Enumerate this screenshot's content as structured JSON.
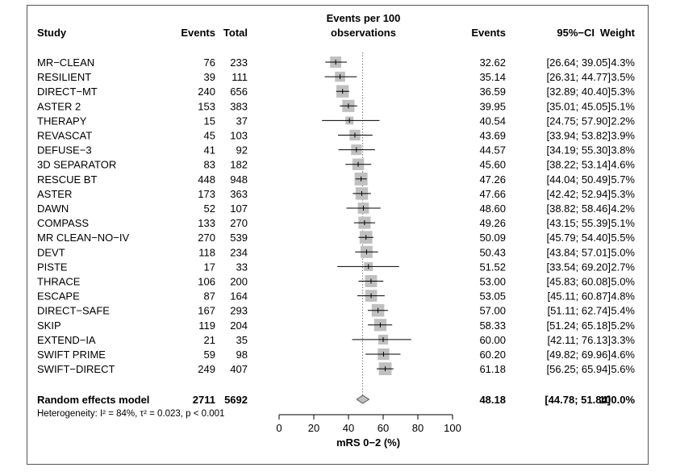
{
  "chart_data": {
    "type": "forest",
    "header": {
      "study": "Study",
      "events": "Events",
      "total": "Total",
      "plot_title_line1": "Events per 100",
      "plot_title_line2": "observations",
      "events_est": "Events",
      "ci": "95%−CI",
      "weight": "Weight"
    },
    "studies": [
      {
        "study": "MR−CLEAN",
        "events": "76",
        "total": "233",
        "est": 32.62,
        "lo": 26.64,
        "hi": 39.05,
        "est_text": "32.62",
        "ci_text": "[26.64; 39.05]",
        "weight": 4.3,
        "weight_text": "4.3%"
      },
      {
        "study": "RESILIENT",
        "events": "39",
        "total": "111",
        "est": 35.14,
        "lo": 26.31,
        "hi": 44.77,
        "est_text": "35.14",
        "ci_text": "[26.31; 44.77]",
        "weight": 3.5,
        "weight_text": "3.5%"
      },
      {
        "study": "DIRECT−MT",
        "events": "240",
        "total": "656",
        "est": 36.59,
        "lo": 32.89,
        "hi": 40.4,
        "est_text": "36.59",
        "ci_text": "[32.89; 40.40]",
        "weight": 5.3,
        "weight_text": "5.3%"
      },
      {
        "study": "ASTER 2",
        "events": "153",
        "total": "383",
        "est": 39.95,
        "lo": 35.01,
        "hi": 45.05,
        "est_text": "39.95",
        "ci_text": "[35.01; 45.05]",
        "weight": 5.1,
        "weight_text": "5.1%"
      },
      {
        "study": "THERAPY",
        "events": "15",
        "total": "37",
        "est": 40.54,
        "lo": 24.75,
        "hi": 57.9,
        "est_text": "40.54",
        "ci_text": "[24.75; 57.90]",
        "weight": 2.2,
        "weight_text": "2.2%"
      },
      {
        "study": "REVASCAT",
        "events": "45",
        "total": "103",
        "est": 43.69,
        "lo": 33.94,
        "hi": 53.82,
        "est_text": "43.69",
        "ci_text": "[33.94; 53.82]",
        "weight": 3.9,
        "weight_text": "3.9%"
      },
      {
        "study": "DEFUSE−3",
        "events": "41",
        "total": "92",
        "est": 44.57,
        "lo": 34.19,
        "hi": 55.3,
        "est_text": "44.57",
        "ci_text": "[34.19; 55.30]",
        "weight": 3.8,
        "weight_text": "3.8%"
      },
      {
        "study": "3D SEPARATOR",
        "events": "83",
        "total": "182",
        "est": 45.6,
        "lo": 38.22,
        "hi": 53.14,
        "est_text": "45.60",
        "ci_text": "[38.22; 53.14]",
        "weight": 4.6,
        "weight_text": "4.6%"
      },
      {
        "study": "RESCUE BT",
        "events": "448",
        "total": "948",
        "est": 47.26,
        "lo": 44.04,
        "hi": 50.49,
        "est_text": "47.26",
        "ci_text": "[44.04; 50.49]",
        "weight": 5.7,
        "weight_text": "5.7%"
      },
      {
        "study": "ASTER",
        "events": "173",
        "total": "363",
        "est": 47.66,
        "lo": 42.42,
        "hi": 52.94,
        "est_text": "47.66",
        "ci_text": "[42.42; 52.94]",
        "weight": 5.3,
        "weight_text": "5.3%"
      },
      {
        "study": "DAWN",
        "events": "52",
        "total": "107",
        "est": 48.6,
        "lo": 38.82,
        "hi": 58.46,
        "est_text": "48.60",
        "ci_text": "[38.82; 58.46]",
        "weight": 4.2,
        "weight_text": "4.2%"
      },
      {
        "study": "COMPASS",
        "events": "133",
        "total": "270",
        "est": 49.26,
        "lo": 43.15,
        "hi": 55.39,
        "est_text": "49.26",
        "ci_text": "[43.15; 55.39]",
        "weight": 5.1,
        "weight_text": "5.1%"
      },
      {
        "study": "MR CLEAN−NO−IV",
        "events": "270",
        "total": "539",
        "est": 50.09,
        "lo": 45.79,
        "hi": 54.4,
        "est_text": "50.09",
        "ci_text": "[45.79; 54.40]",
        "weight": 5.5,
        "weight_text": "5.5%"
      },
      {
        "study": "DEVT",
        "events": "118",
        "total": "234",
        "est": 50.43,
        "lo": 43.84,
        "hi": 57.01,
        "est_text": "50.43",
        "ci_text": "[43.84; 57.01]",
        "weight": 5.0,
        "weight_text": "5.0%"
      },
      {
        "study": "PISTE",
        "events": "17",
        "total": "33",
        "est": 51.52,
        "lo": 33.54,
        "hi": 69.2,
        "est_text": "51.52",
        "ci_text": "[33.54; 69.20]",
        "weight": 2.7,
        "weight_text": "2.7%"
      },
      {
        "study": "THRACE",
        "events": "106",
        "total": "200",
        "est": 53.0,
        "lo": 45.83,
        "hi": 60.08,
        "est_text": "53.00",
        "ci_text": "[45.83; 60.08]",
        "weight": 5.0,
        "weight_text": "5.0%"
      },
      {
        "study": "ESCAPE",
        "events": "87",
        "total": "164",
        "est": 53.05,
        "lo": 45.11,
        "hi": 60.87,
        "est_text": "53.05",
        "ci_text": "[45.11; 60.87]",
        "weight": 4.8,
        "weight_text": "4.8%"
      },
      {
        "study": "DIRECT−SAFE",
        "events": "167",
        "total": "293",
        "est": 57.0,
        "lo": 51.11,
        "hi": 62.74,
        "est_text": "57.00",
        "ci_text": "[51.11; 62.74]",
        "weight": 5.4,
        "weight_text": "5.4%"
      },
      {
        "study": "SKIP",
        "events": "119",
        "total": "204",
        "est": 58.33,
        "lo": 51.24,
        "hi": 65.18,
        "est_text": "58.33",
        "ci_text": "[51.24; 65.18]",
        "weight": 5.2,
        "weight_text": "5.2%"
      },
      {
        "study": "EXTEND−IA",
        "events": "21",
        "total": "35",
        "est": 60.0,
        "lo": 42.11,
        "hi": 76.13,
        "est_text": "60.00",
        "ci_text": "[42.11; 76.13]",
        "weight": 3.3,
        "weight_text": "3.3%"
      },
      {
        "study": "SWIFT PRIME",
        "events": "59",
        "total": "98",
        "est": 60.2,
        "lo": 49.82,
        "hi": 69.96,
        "est_text": "60.20",
        "ci_text": "[49.82; 69.96]",
        "weight": 4.6,
        "weight_text": "4.6%"
      },
      {
        "study": "SWIFT−DIRECT",
        "events": "249",
        "total": "407",
        "est": 61.18,
        "lo": 56.25,
        "hi": 65.94,
        "est_text": "61.18",
        "ci_text": "[56.25; 65.94]",
        "weight": 5.6,
        "weight_text": "5.6%"
      }
    ],
    "summary": {
      "label": "Random effects model",
      "events": "2711",
      "total": "5692",
      "est": 48.18,
      "lo": 44.78,
      "hi": 51.84,
      "est_text": "48.18",
      "ci_text": "[44.78; 51.84]",
      "weight_text": "100.0%"
    },
    "heterogeneity": "Heterogeneity: I² = 84%, τ² = 0.023, p < 0.001",
    "xaxis": {
      "label": "mRS 0−2 (%)",
      "ticks": [
        0,
        20,
        40,
        60,
        80,
        100
      ],
      "range": [
        0,
        100
      ]
    },
    "reference_line": 48.18,
    "colors": {
      "square": "#c0c0c0",
      "diamond": "#c0c0c0",
      "line": "#000000",
      "ref_line": "#777777"
    }
  }
}
